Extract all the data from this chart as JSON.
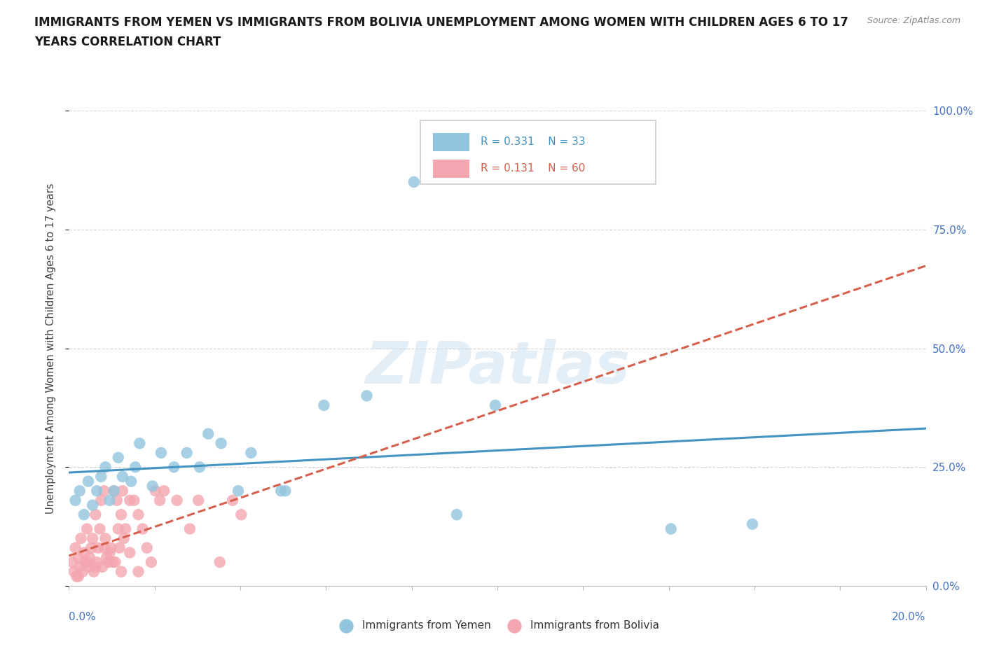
{
  "title_line1": "IMMIGRANTS FROM YEMEN VS IMMIGRANTS FROM BOLIVIA UNEMPLOYMENT AMONG WOMEN WITH CHILDREN AGES 6 TO 17",
  "title_line2": "YEARS CORRELATION CHART",
  "source": "Source: ZipAtlas.com",
  "ylabel": "Unemployment Among Women with Children Ages 6 to 17 years",
  "ytick_labels": [
    "0.0%",
    "25.0%",
    "50.0%",
    "75.0%",
    "100.0%"
  ],
  "ytick_values": [
    0,
    25,
    50,
    75,
    100
  ],
  "xlim": [
    0,
    20
  ],
  "ylim": [
    0,
    100
  ],
  "background_color": "#ffffff",
  "grid_color": "#d0d0d0",
  "yemen_color": "#92c5de",
  "yemen_line_color": "#4393c3",
  "bolivia_color": "#f4a6b0",
  "bolivia_line_color": "#d6604d",
  "yemen_R": "0.331",
  "yemen_N": "33",
  "bolivia_R": "0.131",
  "bolivia_N": "60",
  "tick_color": "#4472c4",
  "yemen_x": [
    0.15,
    0.25,
    0.35,
    0.45,
    0.55,
    0.65,
    0.75,
    0.85,
    0.95,
    1.05,
    1.15,
    1.25,
    1.45,
    1.55,
    1.65,
    1.95,
    2.15,
    2.45,
    2.75,
    3.05,
    3.25,
    3.55,
    3.95,
    4.25,
    4.95,
    5.05,
    5.95,
    6.95,
    8.05,
    9.05,
    9.95,
    14.05,
    15.95
  ],
  "yemen_y": [
    18,
    20,
    15,
    22,
    17,
    20,
    23,
    25,
    18,
    20,
    27,
    23,
    22,
    25,
    30,
    21,
    28,
    25,
    28,
    25,
    32,
    30,
    20,
    28,
    20,
    20,
    38,
    40,
    85,
    15,
    38,
    12,
    13
  ],
  "bolivia_x": [
    0.08,
    0.12,
    0.15,
    0.18,
    0.22,
    0.25,
    0.28,
    0.32,
    0.35,
    0.38,
    0.42,
    0.45,
    0.48,
    0.52,
    0.55,
    0.58,
    0.62,
    0.65,
    0.68,
    0.72,
    0.75,
    0.78,
    0.82,
    0.85,
    0.88,
    0.92,
    0.95,
    0.98,
    1.05,
    1.08,
    1.12,
    1.15,
    1.18,
    1.22,
    1.25,
    1.28,
    1.32,
    1.42,
    1.52,
    1.62,
    1.72,
    1.82,
    1.92,
    2.02,
    2.12,
    2.22,
    2.52,
    2.82,
    3.02,
    3.52,
    3.82,
    4.02,
    0.22,
    0.42,
    0.62,
    0.82,
    1.02,
    1.22,
    1.42,
    1.62
  ],
  "bolivia_y": [
    5,
    3,
    8,
    2,
    6,
    4,
    10,
    3,
    7,
    5,
    12,
    4,
    6,
    8,
    10,
    3,
    15,
    5,
    8,
    12,
    18,
    4,
    20,
    10,
    6,
    5,
    7,
    8,
    20,
    5,
    18,
    12,
    8,
    15,
    20,
    10,
    12,
    18,
    18,
    15,
    12,
    8,
    5,
    20,
    18,
    20,
    18,
    12,
    18,
    5,
    18,
    15,
    2,
    5,
    4,
    8,
    5,
    3,
    7,
    3
  ]
}
